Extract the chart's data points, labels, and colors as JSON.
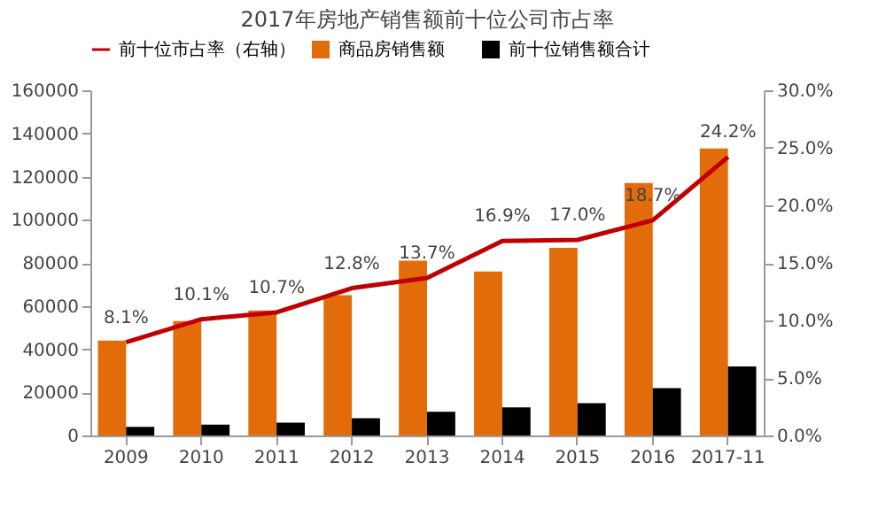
{
  "chart_data": {
    "type": "bar",
    "title": "2017年房地产销售额前十位公司市占率",
    "categories": [
      "2009",
      "2010",
      "2011",
      "2012",
      "2013",
      "2014",
      "2015",
      "2016",
      "2017-11"
    ],
    "series": [
      {
        "name": "商品房销售额",
        "color": "#e36c0a",
        "values": [
          44000,
          53000,
          58000,
          65000,
          81000,
          76000,
          87000,
          117000,
          133000
        ]
      },
      {
        "name": "前十位销售额合计",
        "color": "#000000",
        "values": [
          4000,
          5000,
          6000,
          8000,
          11000,
          13000,
          15000,
          22000,
          32000
        ]
      },
      {
        "name": "前十位市占率（右轴）",
        "type": "line",
        "axis": "y2",
        "color": "#c00000",
        "values": [
          8.1,
          10.1,
          10.7,
          12.8,
          13.7,
          16.9,
          17.0,
          18.7,
          24.2
        ],
        "value_labels": [
          "8.1%",
          "10.1%",
          "10.7%",
          "12.8%",
          "13.7%",
          "16.9%",
          "17.0%",
          "18.7%",
          "24.2%"
        ]
      }
    ],
    "ylim": [
      0,
      160000
    ],
    "yticks": [
      0,
      20000,
      40000,
      60000,
      80000,
      100000,
      120000,
      140000,
      160000
    ],
    "y2lim": [
      0,
      30
    ],
    "y2ticks": [
      {
        "value": 0,
        "label": "0.0%"
      },
      {
        "value": 5,
        "label": "5.0%"
      },
      {
        "value": 10,
        "label": "10.0%"
      },
      {
        "value": 15,
        "label": "15.0%"
      },
      {
        "value": 20,
        "label": "20.0%"
      },
      {
        "value": 25,
        "label": "25.0%"
      },
      {
        "value": 30,
        "label": "30.0%"
      }
    ],
    "grid": false,
    "legend": "top"
  }
}
